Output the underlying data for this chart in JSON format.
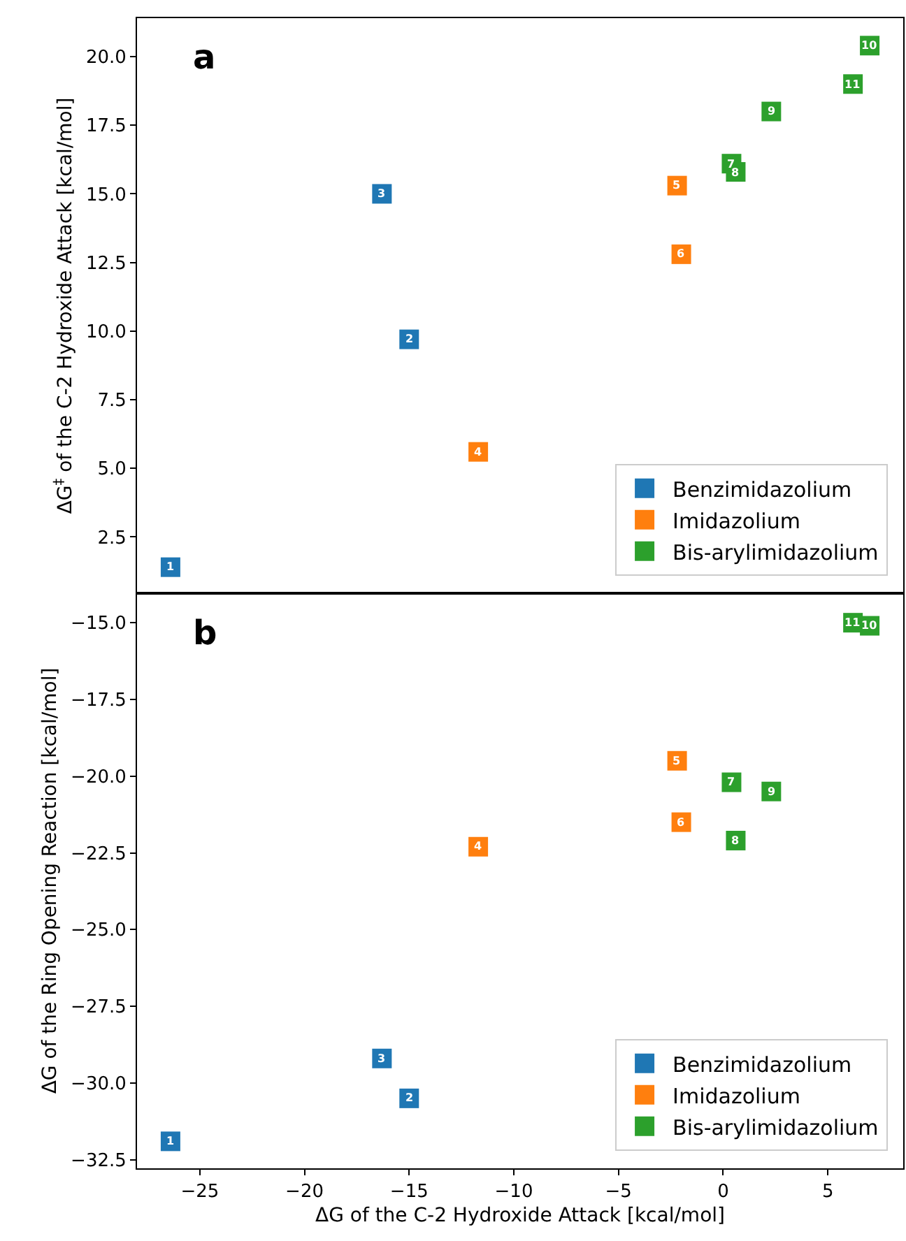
{
  "chart_data": [
    {
      "type": "scatter",
      "ylabel": "ΔG$^{‡}$ of the C-2 Hydroxide Attack [kcal/mol]",
      "xlim": [
        -28,
        8.6
      ],
      "ylim": [
        0.45,
        21.4
      ],
      "xticks": [
        -25,
        -20,
        -15,
        -10,
        -5,
        0,
        5
      ],
      "yticks": [
        {
          "value": 2.5,
          "label": "2.5"
        },
        {
          "value": 5,
          "label": "5.0"
        },
        {
          "value": 7.5,
          "label": "7.5"
        },
        {
          "value": 10,
          "label": "10.0"
        },
        {
          "value": 12.5,
          "label": "12.5"
        },
        {
          "value": 15,
          "label": "15.0"
        },
        {
          "value": 17.5,
          "label": "17.5"
        },
        {
          "value": 20,
          "label": "20.0"
        }
      ],
      "tick_labels": "y",
      "marker": "square",
      "grid": false,
      "legend": "bottom right",
      "series": [
        {
          "name": "Benzimidazolium",
          "color": "#1f77b4",
          "x": [
            -26.4,
            -15.0,
            -16.3
          ],
          "values": [
            1.4,
            9.7,
            15.0
          ]
        },
        {
          "name": "Imidazolium",
          "color": "#ff7f0e",
          "x": [
            -11.7,
            -2.2,
            -2.0
          ],
          "values": [
            5.6,
            15.3,
            12.8
          ]
        },
        {
          "name": "Bis-arylimidazolium",
          "color": "#2ca02c",
          "x": [
            0.4,
            0.6,
            2.3,
            7.0,
            6.2
          ],
          "values": [
            16.1,
            15.8,
            18.0,
            20.4,
            19.0
          ]
        }
      ],
      "annotations": [
        "a",
        {
          "text": "1",
          "x": -26.4,
          "y": 1.4
        },
        {
          "text": "2",
          "x": -15.0,
          "y": 9.7
        },
        {
          "text": "3",
          "x": -16.3,
          "y": 15.0
        },
        {
          "text": "4",
          "x": -11.7,
          "y": 5.6
        },
        {
          "text": "5",
          "x": -2.2,
          "y": 15.3
        },
        {
          "text": "6",
          "x": -2.0,
          "y": 12.8
        },
        {
          "text": "7",
          "x": 0.4,
          "y": 16.1
        },
        {
          "text": "8",
          "x": 0.6,
          "y": 15.8
        },
        {
          "text": "9",
          "x": 2.3,
          "y": 18.0
        },
        {
          "text": "10",
          "x": 7.0,
          "y": 20.4
        },
        {
          "text": "11",
          "x": 6.2,
          "y": 19.0
        }
      ]
    },
    {
      "type": "scatter",
      "xlabel": "ΔG of the C-2 Hydroxide Attack [kcal/mol]",
      "ylabel": "ΔG of the Ring Opening Reaction [kcal/mol]",
      "xlim": [
        -28,
        8.6
      ],
      "ylim": [
        -32.78,
        -14.04
      ],
      "xticks": [
        {
          "value": -25,
          "label": "−25"
        },
        {
          "value": -20,
          "label": "−20"
        },
        {
          "value": -15,
          "label": "−15"
        },
        {
          "value": -10,
          "label": "−10"
        },
        {
          "value": -5,
          "label": "−5"
        },
        0,
        5
      ],
      "yticks": [
        {
          "value": -32.5,
          "label": "−32.5"
        },
        {
          "value": -30,
          "label": "−30.0"
        },
        {
          "value": -27.5,
          "label": "−27.5"
        },
        {
          "value": -25,
          "label": "−25.0"
        },
        {
          "value": -22.5,
          "label": "−22.5"
        },
        {
          "value": -20,
          "label": "−20.0"
        },
        {
          "value": -17.5,
          "label": "−17.5"
        },
        {
          "value": -15,
          "label": "−15.0"
        }
      ],
      "marker": "square",
      "grid": false,
      "legend": "bottom right",
      "series": [
        {
          "name": "Benzimidazolium",
          "color": "#1f77b4",
          "x": [
            -26.4,
            -15.0,
            -16.3
          ],
          "values": [
            -31.9,
            -30.5,
            -29.2
          ]
        },
        {
          "name": "Imidazolium",
          "color": "#ff7f0e",
          "x": [
            -11.7,
            -2.2,
            -2.0
          ],
          "values": [
            -22.3,
            -19.5,
            -21.5
          ]
        },
        {
          "name": "Bis-arylimidazolium",
          "color": "#2ca02c",
          "x": [
            0.4,
            0.6,
            2.3,
            7.0,
            6.2
          ],
          "values": [
            -20.2,
            -22.1,
            -20.5,
            -15.1,
            -15.0
          ]
        }
      ],
      "annotations": [
        "b",
        {
          "text": "1",
          "x": -26.4,
          "y": -31.9
        },
        {
          "text": "2",
          "x": -15.0,
          "y": -30.5
        },
        {
          "text": "3",
          "x": -16.3,
          "y": -29.2
        },
        {
          "text": "4",
          "x": -11.7,
          "y": -22.3
        },
        {
          "text": "5",
          "x": -2.2,
          "y": -19.5
        },
        {
          "text": "6",
          "x": -2.0,
          "y": -21.5
        },
        {
          "text": "7",
          "x": 0.4,
          "y": -20.2
        },
        {
          "text": "8",
          "x": 0.6,
          "y": -22.1
        },
        {
          "text": "9",
          "x": 2.3,
          "y": -20.5
        },
        {
          "text": "10",
          "x": 7.0,
          "y": -15.1
        },
        {
          "text": "11",
          "x": 6.2,
          "y": -15.0
        }
      ]
    }
  ]
}
